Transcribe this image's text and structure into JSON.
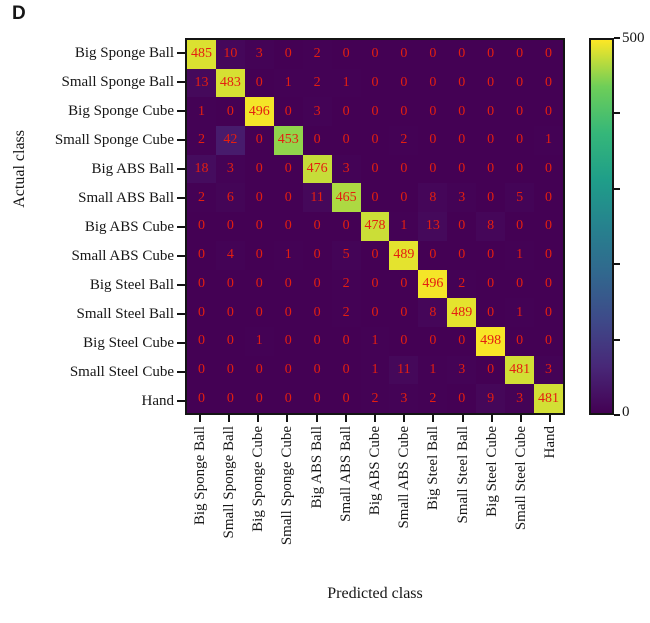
{
  "panel_label": "D",
  "colorbar": {
    "max_label": "500",
    "min_label": "0",
    "ticks": [
      0,
      100,
      200,
      300,
      400,
      500
    ],
    "labeled_ticks": [
      0,
      500
    ]
  },
  "colors": {
    "value_text": "#e41f10",
    "axis_line": "#141414",
    "colormap_min": "#440154",
    "colormap_max": "#fde725"
  },
  "chart_data": {
    "type": "heatmap",
    "colormap": "viridis",
    "vmin": 0,
    "vmax": 500,
    "xlabel": "Predicted class",
    "ylabel": "Actual class",
    "categories": [
      "Big Sponge Ball",
      "Small Sponge Ball",
      "Big Sponge Cube",
      "Small Sponge Cube",
      "Big ABS Ball",
      "Small ABS Ball",
      "Big ABS Cube",
      "Small ABS Cube",
      "Big Steel Ball",
      "Small Steel Ball",
      "Big Steel Cube",
      "Small Steel Cube",
      "Hand"
    ],
    "matrix": [
      [
        485,
        10,
        3,
        0,
        2,
        0,
        0,
        0,
        0,
        0,
        0,
        0,
        0
      ],
      [
        13,
        483,
        0,
        1,
        2,
        1,
        0,
        0,
        0,
        0,
        0,
        0,
        0
      ],
      [
        1,
        0,
        496,
        0,
        3,
        0,
        0,
        0,
        0,
        0,
        0,
        0,
        0
      ],
      [
        2,
        42,
        0,
        453,
        0,
        0,
        0,
        2,
        0,
        0,
        0,
        0,
        1
      ],
      [
        18,
        3,
        0,
        0,
        476,
        3,
        0,
        0,
        0,
        0,
        0,
        0,
        0
      ],
      [
        2,
        6,
        0,
        0,
        11,
        465,
        0,
        0,
        8,
        3,
        0,
        5,
        0
      ],
      [
        0,
        0,
        0,
        0,
        0,
        0,
        478,
        1,
        13,
        0,
        8,
        0,
        0
      ],
      [
        0,
        4,
        0,
        1,
        0,
        5,
        0,
        489,
        0,
        0,
        0,
        1,
        0
      ],
      [
        0,
        0,
        0,
        0,
        0,
        2,
        0,
        0,
        496,
        2,
        0,
        0,
        0
      ],
      [
        0,
        0,
        0,
        0,
        0,
        2,
        0,
        0,
        8,
        489,
        0,
        1,
        0
      ],
      [
        0,
        0,
        1,
        0,
        0,
        0,
        1,
        0,
        0,
        0,
        498,
        0,
        0
      ],
      [
        0,
        0,
        0,
        0,
        0,
        0,
        1,
        11,
        1,
        3,
        0,
        481,
        3
      ],
      [
        0,
        0,
        0,
        0,
        0,
        0,
        2,
        3,
        2,
        0,
        9,
        3,
        481
      ]
    ]
  }
}
